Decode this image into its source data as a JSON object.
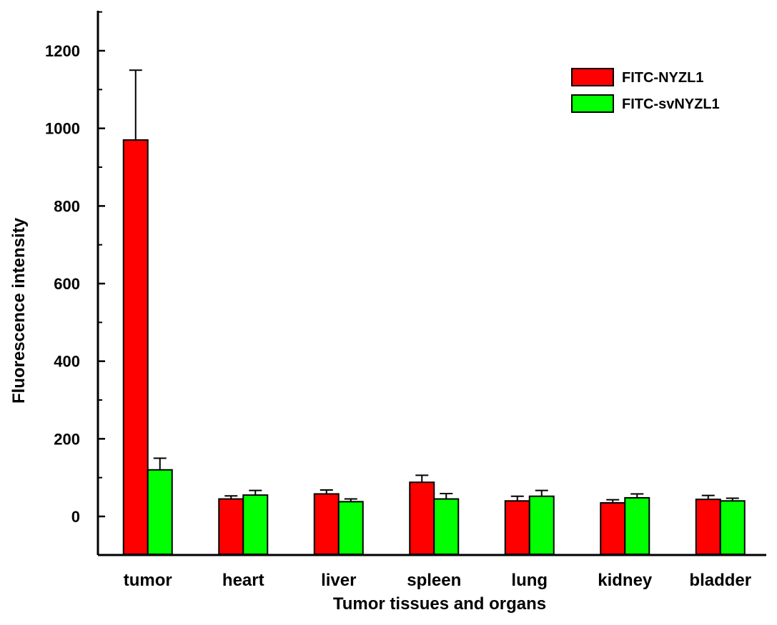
{
  "chart_data": {
    "type": "bar",
    "title": "",
    "xlabel": "Tumor tissues and organs",
    "ylabel": "Fluorescence intensity",
    "categories": [
      "tumor",
      "heart",
      "liver",
      "spleen",
      "lung",
      "kidney",
      "bladder"
    ],
    "series": [
      {
        "name": "FITC-NYZL1",
        "color": "#ff0000",
        "values": [
          970,
          45,
          58,
          88,
          40,
          35,
          44
        ],
        "errors": [
          180,
          8,
          10,
          18,
          12,
          8,
          10
        ]
      },
      {
        "name": "FITC-svNYZL1",
        "color": "#00ff00",
        "values": [
          120,
          55,
          38,
          45,
          52,
          48,
          40
        ],
        "errors": [
          30,
          12,
          7,
          14,
          15,
          10,
          7
        ]
      }
    ],
    "ylim": [
      -100,
      1300
    ],
    "yticks": [
      0,
      200,
      400,
      600,
      800,
      1000,
      1200
    ],
    "grid": false,
    "legend_position": "top-right"
  }
}
